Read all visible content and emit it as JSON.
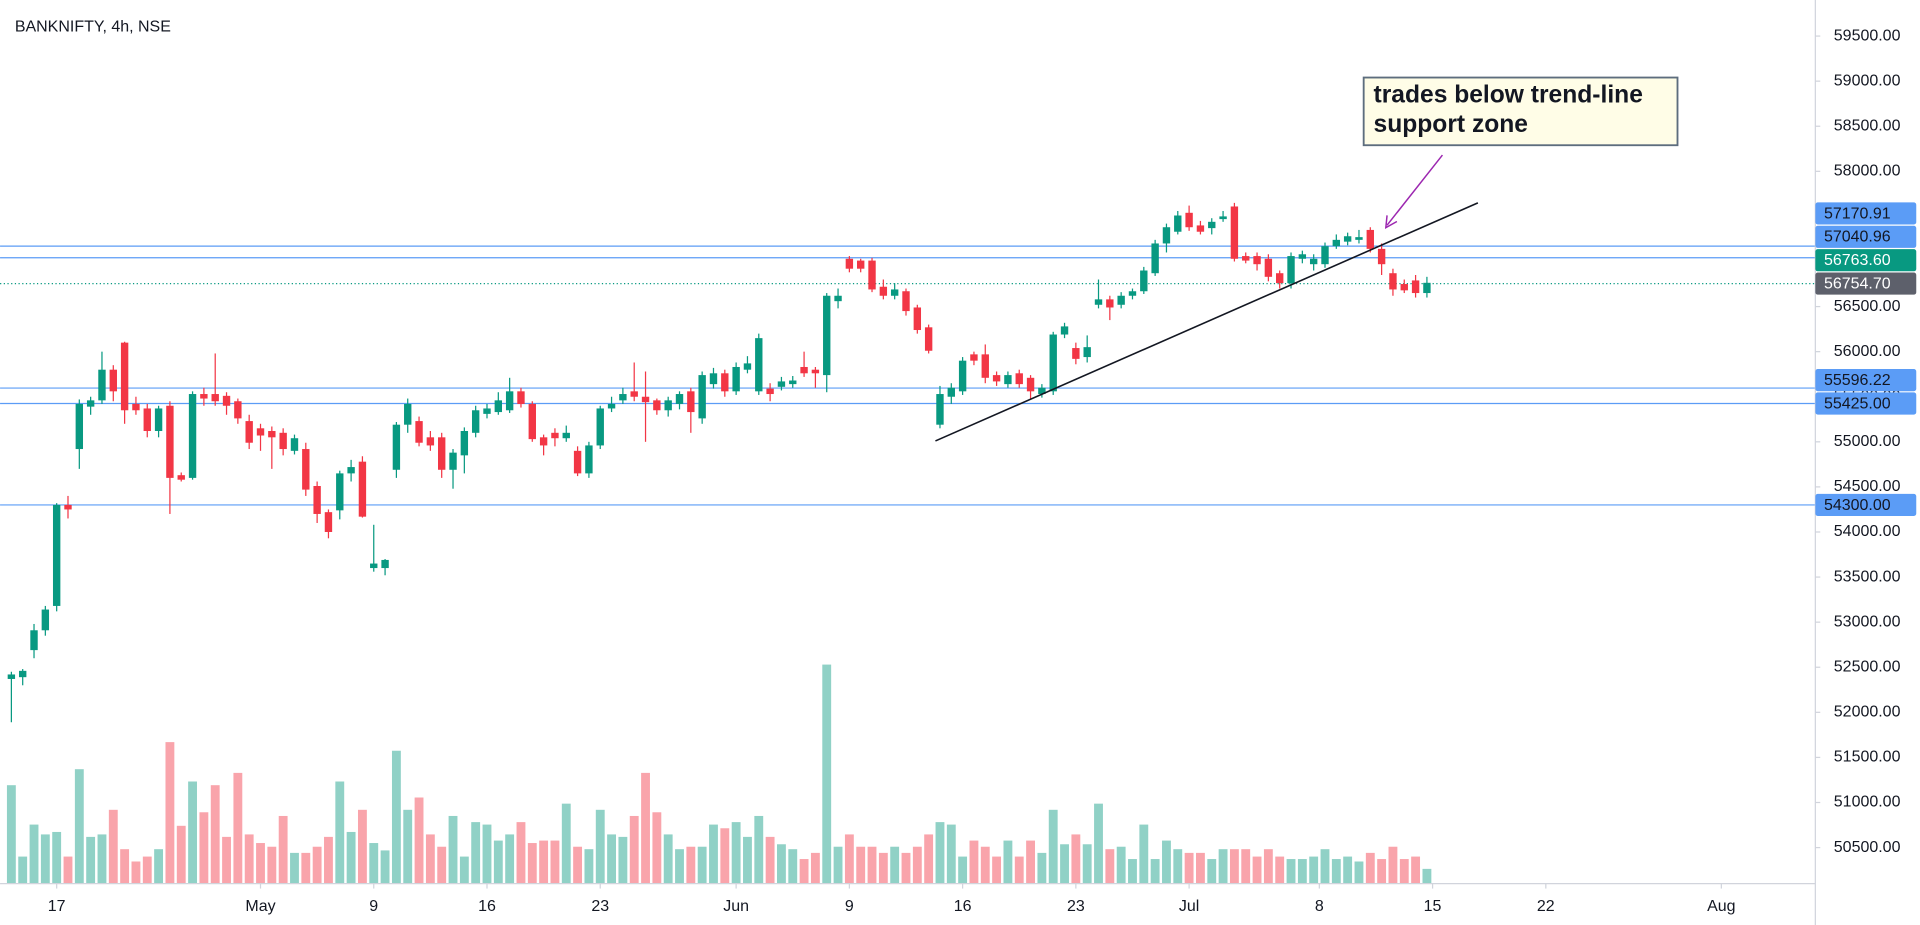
{
  "chart_data": {
    "type": "candlestick",
    "title": "BANKNIFTY, 4h, NSE",
    "up_color": "#089981",
    "down_color": "#f23645",
    "level_color": "#5b9cf6",
    "open": [
      52370,
      52390,
      52690,
      52910,
      53180,
      54300,
      54920,
      55390,
      55460,
      55800,
      56100,
      55420,
      55370,
      55120,
      55400,
      54630,
      54600,
      55530,
      55530,
      55510,
      55450,
      55230,
      55150,
      55120,
      55100,
      54900,
      54920,
      54510,
      54220,
      54240,
      54650,
      54780,
      53600,
      53600,
      54690,
      55190,
      55230,
      55050,
      55050,
      54690,
      54850,
      55100,
      55310,
      55330,
      55350,
      55560,
      55420,
      55050,
      55100,
      55040,
      54900,
      54650,
      54960,
      55370,
      55460,
      55560,
      55500,
      55460,
      55350,
      55420,
      55560,
      55260,
      55640,
      55760,
      55560,
      55800,
      55560,
      55590,
      55610,
      55640,
      55830,
      55800,
      55740,
      56560,
      57030,
      57010,
      57010,
      56720,
      56620,
      56670,
      56490,
      56270,
      55190,
      55500,
      55560,
      55970,
      55970,
      55740,
      55640,
      55760,
      55710,
      55530,
      55560,
      56190,
      56040,
      55940,
      56520,
      56580,
      56520,
      56620,
      56670,
      56870,
      57200,
      57330,
      57540,
      57400,
      57370,
      57470,
      57610,
      57060,
      57060,
      57030,
      56870,
      56760,
      57030,
      56970,
      56970,
      57170,
      57220,
      57240,
      57350,
      57140,
      56870,
      56750,
      56790,
      56650
    ],
    "high": [
      52450,
      52480,
      52980,
      53180,
      54320,
      54400,
      55470,
      55500,
      56000,
      55850,
      56110,
      55500,
      55420,
      55400,
      55450,
      54660,
      55560,
      55600,
      55980,
      55550,
      55480,
      55300,
      55200,
      55170,
      55150,
      55080,
      54990,
      54560,
      54250,
      54680,
      54800,
      54840,
      54080,
      53700,
      55220,
      55480,
      55280,
      55120,
      55100,
      54920,
      55160,
      55400,
      55420,
      55550,
      55710,
      55600,
      55450,
      55080,
      55150,
      55180,
      54950,
      55000,
      55400,
      55500,
      55600,
      55880,
      55780,
      55480,
      55500,
      55560,
      55600,
      55780,
      55820,
      55800,
      55880,
      55950,
      56200,
      55650,
      55720,
      55730,
      56000,
      55830,
      56650,
      56700,
      57060,
      57030,
      57040,
      56800,
      56760,
      56700,
      56520,
      56300,
      55620,
      55650,
      55940,
      56000,
      56080,
      55780,
      55780,
      55800,
      55740,
      55640,
      56220,
      56320,
      56100,
      56180,
      56800,
      56620,
      56660,
      56700,
      56940,
      57240,
      57420,
      57560,
      57620,
      57450,
      57480,
      57560,
      57650,
      57100,
      57100,
      57080,
      56900,
      57100,
      57120,
      57080,
      57210,
      57300,
      57320,
      57350,
      57380,
      57200,
      56920,
      56800,
      56850,
      56830
    ],
    "low": [
      51890,
      52300,
      52600,
      52850,
      53120,
      54150,
      54700,
      55300,
      55420,
      55450,
      55200,
      55300,
      55050,
      55050,
      54200,
      54560,
      54580,
      55400,
      55400,
      55300,
      55200,
      54920,
      54900,
      54700,
      54850,
      54860,
      54400,
      54100,
      53930,
      54140,
      54560,
      54160,
      53560,
      53520,
      54600,
      55100,
      54950,
      54900,
      54600,
      54480,
      54650,
      55050,
      55260,
      55300,
      55320,
      55380,
      55000,
      54850,
      54950,
      55000,
      54620,
      54600,
      54920,
      55330,
      55420,
      55450,
      55000,
      55300,
      55280,
      55360,
      55100,
      55200,
      55590,
      55500,
      55520,
      55760,
      55520,
      55450,
      55570,
      55600,
      55720,
      55600,
      55550,
      56480,
      56880,
      56880,
      56660,
      56580,
      56580,
      56400,
      56200,
      55980,
      55150,
      55420,
      55520,
      55850,
      55650,
      55620,
      55600,
      55600,
      55480,
      55490,
      55520,
      56150,
      55860,
      55880,
      56480,
      56350,
      56480,
      56580,
      56640,
      56840,
      57100,
      57300,
      57340,
      57300,
      57300,
      57440,
      57000,
      56980,
      56900,
      56780,
      56700,
      56700,
      56980,
      56900,
      56930,
      57140,
      57180,
      57200,
      57100,
      56850,
      56620,
      56650,
      56600,
      56600
    ],
    "close": [
      52420,
      52460,
      52910,
      53140,
      54300,
      54250,
      55420,
      55460,
      55800,
      55560,
      55350,
      55350,
      55120,
      55370,
      54600,
      54580,
      55530,
      55480,
      55450,
      55400,
      55260,
      54990,
      55070,
      55050,
      54920,
      55040,
      54470,
      54200,
      54000,
      54650,
      54720,
      54170,
      53650,
      53690,
      55190,
      55420,
      54990,
      54960,
      54690,
      54880,
      55120,
      55350,
      55370,
      55460,
      55560,
      55420,
      55030,
      54960,
      55040,
      55100,
      54650,
      54960,
      55370,
      55420,
      55530,
      55500,
      55440,
      55350,
      55460,
      55530,
      55330,
      55740,
      55760,
      55560,
      55830,
      55870,
      56150,
      55530,
      55670,
      55680,
      55760,
      55760,
      56620,
      56620,
      56920,
      56920,
      56690,
      56620,
      56690,
      56450,
      56240,
      56010,
      55530,
      55600,
      55900,
      55900,
      55710,
      55670,
      55740,
      55640,
      55560,
      55600,
      56190,
      56280,
      55920,
      56050,
      56580,
      56490,
      56620,
      56670,
      56900,
      57200,
      57380,
      57510,
      57380,
      57330,
      57440,
      57500,
      57030,
      57010,
      56970,
      56830,
      56760,
      57060,
      57080,
      57030,
      57170,
      57240,
      57280,
      57270,
      57140,
      56970,
      56690,
      56680,
      56650,
      56763.6
    ],
    "volume": [
      80,
      22,
      48,
      40,
      42,
      22,
      93,
      38,
      40,
      60,
      28,
      18,
      22,
      28,
      115,
      47,
      83,
      58,
      80,
      38,
      90,
      40,
      33,
      30,
      55,
      25,
      25,
      30,
      38,
      83,
      42,
      60,
      33,
      27,
      108,
      60,
      70,
      40,
      30,
      55,
      22,
      50,
      48,
      35,
      40,
      50,
      33,
      35,
      35,
      65,
      30,
      28,
      60,
      40,
      38,
      55,
      90,
      58,
      40,
      28,
      30,
      30,
      48,
      45,
      50,
      38,
      55,
      38,
      32,
      28,
      20,
      25,
      178,
      30,
      40,
      30,
      30,
      25,
      30,
      25,
      30,
      40,
      50,
      48,
      22,
      35,
      30,
      22,
      35,
      22,
      35,
      25,
      60,
      32,
      40,
      32,
      65,
      28,
      30,
      20,
      48,
      20,
      35,
      28,
      25,
      25,
      20,
      28,
      28,
      28,
      22,
      28,
      22,
      20,
      20,
      22,
      28,
      20,
      22,
      18,
      25,
      20,
      30,
      20,
      22,
      12
    ],
    "xlim": [
      -1,
      159.3
    ],
    "xticks": [
      {
        "value": 4,
        "label": "17"
      },
      {
        "value": 22,
        "label": "May"
      },
      {
        "value": 32,
        "label": "9"
      },
      {
        "value": 42,
        "label": "16"
      },
      {
        "value": 52,
        "label": "23"
      },
      {
        "value": 64,
        "label": "Jun"
      },
      {
        "value": 74,
        "label": "9"
      },
      {
        "value": 84,
        "label": "16"
      },
      {
        "value": 94,
        "label": "23"
      },
      {
        "value": 104,
        "label": "Jul"
      },
      {
        "value": 115.5,
        "label": "8"
      },
      {
        "value": 125.5,
        "label": "15"
      },
      {
        "value": 135.5,
        "label": "22"
      },
      {
        "value": 151,
        "label": "Aug"
      }
    ],
    "ylim": [
      50100,
      59900
    ],
    "yticks": [
      {
        "value": 50500,
        "label": "50500.00"
      },
      {
        "value": 51000,
        "label": "51000.00"
      },
      {
        "value": 51500,
        "label": "51500.00"
      },
      {
        "value": 52000,
        "label": "52000.00"
      },
      {
        "value": 52500,
        "label": "52500.00"
      },
      {
        "value": 53000,
        "label": "53000.00"
      },
      {
        "value": 53500,
        "label": "53500.00"
      },
      {
        "value": 54000,
        "label": "54000.00"
      },
      {
        "value": 54500,
        "label": "54500.00"
      },
      {
        "value": 55000,
        "label": "55000.00"
      },
      {
        "value": 55500,
        "label": "55500.00"
      },
      {
        "value": 56000,
        "label": "56000.00"
      },
      {
        "value": 56500,
        "label": "56500.00"
      },
      {
        "value": 57000,
        "label": "57000.00"
      },
      {
        "value": 57500,
        "label": "57500.00"
      },
      {
        "value": 58000,
        "label": "58000.00"
      },
      {
        "value": 58500,
        "label": "58500.00"
      },
      {
        "value": 59000,
        "label": "59000.00"
      },
      {
        "value": 59500,
        "label": "59500.00"
      }
    ],
    "levels": [
      57170.91,
      57040.96,
      55596.22,
      {
        "value": 55425,
        "label": "55425.00"
      },
      {
        "value": 54300,
        "label": "54300.00"
      }
    ],
    "last_price": {
      "value": 56763.6,
      "label": "56763.60"
    },
    "marker_price": {
      "value": 56754.7,
      "label": "56754.70"
    },
    "trendline": {
      "x": [
        81.6,
        129.5
      ],
      "y": [
        55010,
        57650
      ]
    },
    "annotation": [
      "trades below trend-line",
      "support zone"
    ]
  }
}
